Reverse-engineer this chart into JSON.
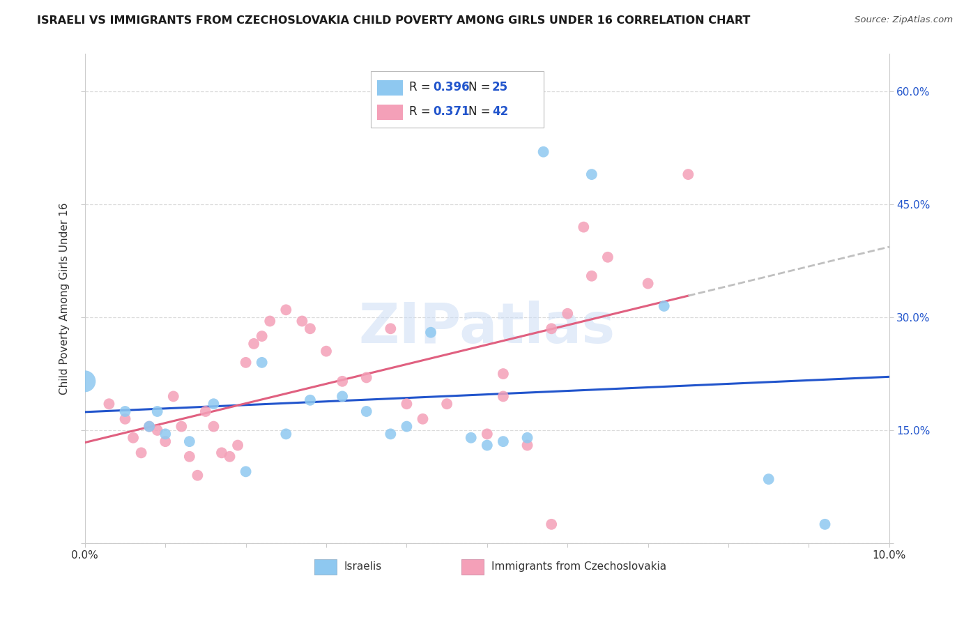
{
  "title": "ISRAELI VS IMMIGRANTS FROM CZECHOSLOVAKIA CHILD POVERTY AMONG GIRLS UNDER 16 CORRELATION CHART",
  "source": "Source: ZipAtlas.com",
  "ylabel": "Child Poverty Among Girls Under 16",
  "xlim": [
    0.0,
    0.1
  ],
  "ylim": [
    0.0,
    0.65
  ],
  "ytick_values": [
    0.0,
    0.15,
    0.3,
    0.45,
    0.6
  ],
  "ytick_labels": [
    "",
    "15.0%",
    "30.0%",
    "45.0%",
    "60.0%"
  ],
  "xtick_values": [
    0.0,
    0.01,
    0.02,
    0.03,
    0.04,
    0.05,
    0.06,
    0.07,
    0.08,
    0.09,
    0.1
  ],
  "xtick_labels": [
    "0.0%",
    "",
    "",
    "",
    "",
    "",
    "",
    "",
    "",
    "",
    "10.0%"
  ],
  "israelis_x": [
    0.0,
    0.005,
    0.008,
    0.009,
    0.01,
    0.013,
    0.016,
    0.02,
    0.022,
    0.025,
    0.028,
    0.032,
    0.035,
    0.038,
    0.04,
    0.048,
    0.05,
    0.052,
    0.057,
    0.063,
    0.072,
    0.085,
    0.092,
    0.043,
    0.055
  ],
  "israelis_y": [
    0.215,
    0.175,
    0.155,
    0.175,
    0.145,
    0.135,
    0.185,
    0.095,
    0.24,
    0.145,
    0.19,
    0.195,
    0.175,
    0.145,
    0.155,
    0.14,
    0.13,
    0.135,
    0.52,
    0.49,
    0.315,
    0.085,
    0.025,
    0.28,
    0.14
  ],
  "israelis_large": [
    [
      0.0,
      0.215
    ]
  ],
  "czech_x": [
    0.003,
    0.005,
    0.006,
    0.007,
    0.008,
    0.009,
    0.01,
    0.011,
    0.012,
    0.013,
    0.014,
    0.015,
    0.016,
    0.017,
    0.018,
    0.019,
    0.02,
    0.021,
    0.022,
    0.023,
    0.025,
    0.027,
    0.028,
    0.03,
    0.032,
    0.035,
    0.038,
    0.04,
    0.042,
    0.045,
    0.05,
    0.055,
    0.058,
    0.062,
    0.065,
    0.07,
    0.075,
    0.052,
    0.06,
    0.063,
    0.058,
    0.052
  ],
  "czech_y": [
    0.185,
    0.165,
    0.14,
    0.12,
    0.155,
    0.15,
    0.135,
    0.195,
    0.155,
    0.115,
    0.09,
    0.175,
    0.155,
    0.12,
    0.115,
    0.13,
    0.24,
    0.265,
    0.275,
    0.295,
    0.31,
    0.295,
    0.285,
    0.255,
    0.215,
    0.22,
    0.285,
    0.185,
    0.165,
    0.185,
    0.145,
    0.13,
    0.025,
    0.42,
    0.38,
    0.345,
    0.49,
    0.195,
    0.305,
    0.355,
    0.285,
    0.225
  ],
  "blue_color": "#8EC8F0",
  "pink_color": "#F4A0B8",
  "blue_line_color": "#2255CC",
  "pink_line_color": "#E06080",
  "dash_color": "#C0C0C0",
  "legend_label_blue": "Israelis",
  "legend_label_pink": "Immigrants from Czechoslovakia",
  "background_color": "#ffffff",
  "grid_color": "#d8d8d8"
}
